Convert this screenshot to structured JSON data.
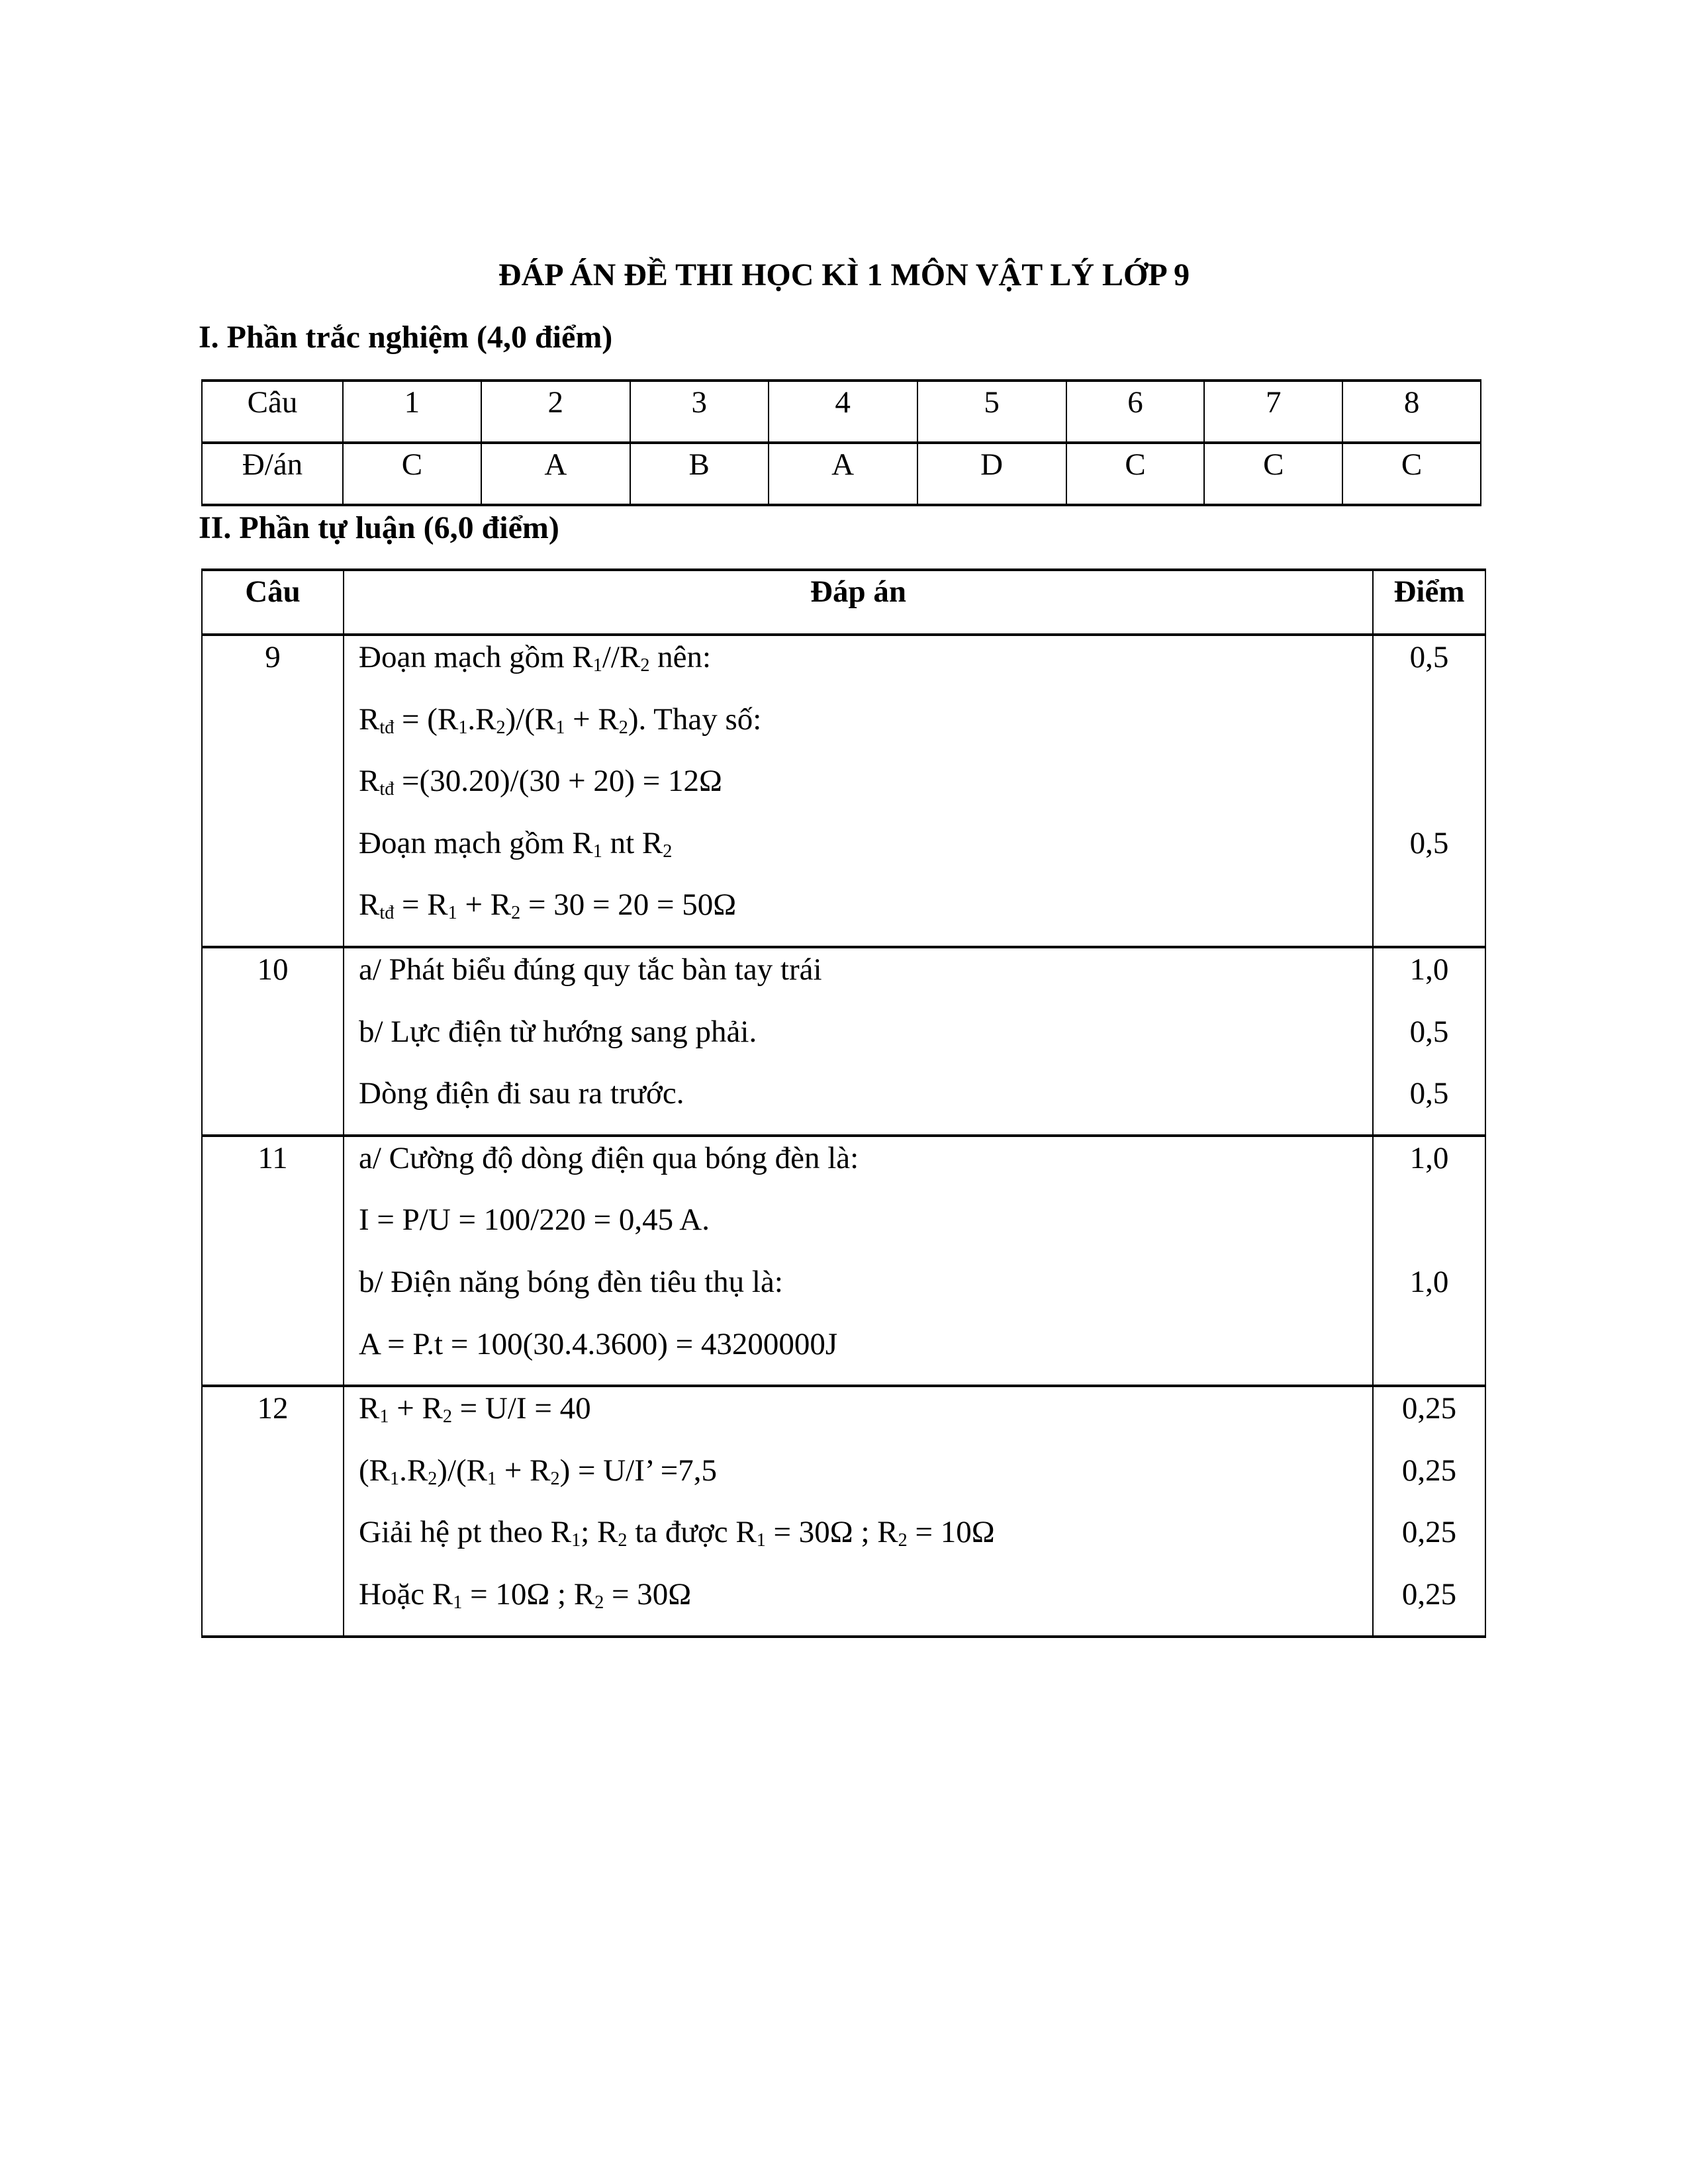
{
  "title": "ĐÁP ÁN ĐỀ THI HỌC KÌ 1 MÔN VẬT LÝ LỚP 9",
  "section1": {
    "heading": "I. Phần trắc nghiệm (4,0 điểm)",
    "row_labels": [
      "Câu",
      "Đ/án"
    ],
    "questions": [
      "1",
      "2",
      "3",
      "4",
      "5",
      "6",
      "7",
      "8"
    ],
    "answers": [
      "C",
      "A",
      "B",
      "A",
      "D",
      "C",
      "C",
      "C"
    ]
  },
  "section2": {
    "heading": "II. Phần tự luận (6,0 điểm)",
    "headers": [
      "Câu",
      "Đáp án",
      "Điểm"
    ],
    "rows": [
      {
        "q": "9",
        "lines": [
          [
            {
              "t": "Đoạn mạch gồm R"
            },
            {
              "s": "1"
            },
            {
              "t": "//R"
            },
            {
              "s": "2"
            },
            {
              "t": " nên:"
            }
          ],
          [
            {
              "t": "R"
            },
            {
              "s": "tđ"
            },
            {
              "t": " = (R"
            },
            {
              "s": "1"
            },
            {
              "t": ".R"
            },
            {
              "s": "2"
            },
            {
              "t": ")/(R"
            },
            {
              "s": "1"
            },
            {
              "t": " + R"
            },
            {
              "s": "2"
            },
            {
              "t": "). Thay số:"
            }
          ],
          [
            {
              "t": "R"
            },
            {
              "s": "tđ"
            },
            {
              "t": " =(30.20)/(30 + 20) = 12Ω"
            }
          ],
          [
            {
              "t": "Đoạn mạch gồm R"
            },
            {
              "s": "1"
            },
            {
              "t": " nt R"
            },
            {
              "s": "2"
            }
          ],
          [
            {
              "t": "R"
            },
            {
              "s": "tđ"
            },
            {
              "t": " = R"
            },
            {
              "s": "1"
            },
            {
              "t": " + R"
            },
            {
              "s": "2"
            },
            {
              "t": " = 30 = 20 = 50Ω"
            }
          ]
        ],
        "points": [
          "0,5",
          "",
          "",
          "0,5",
          ""
        ]
      },
      {
        "q": "10",
        "lines": [
          [
            {
              "t": "a/ Phát biểu đúng quy tắc bàn tay trái"
            }
          ],
          [
            {
              "t": "b/ Lực điện từ hướng sang phải."
            }
          ],
          [
            {
              "t": "Dòng điện đi sau ra trước."
            }
          ]
        ],
        "points": [
          "1,0",
          "0,5",
          "0,5"
        ]
      },
      {
        "q": "11",
        "lines": [
          [
            {
              "t": "a/ Cường độ dòng điện qua bóng đèn là:"
            }
          ],
          [
            {
              "t": "I = P/U = 100/220 = 0,45 A."
            }
          ],
          [
            {
              "t": "b/ Điện năng bóng đèn tiêu thụ là:"
            }
          ],
          [
            {
              "t": "A = P.t = 100(30.4.3600) = 43200000J"
            }
          ]
        ],
        "points": [
          "1,0",
          "",
          "1,0",
          ""
        ]
      },
      {
        "q": "12",
        "lines": [
          [
            {
              "t": "R"
            },
            {
              "s": "1"
            },
            {
              "t": " + R"
            },
            {
              "s": "2"
            },
            {
              "t": " = U/I = 40"
            }
          ],
          [
            {
              "t": "(R"
            },
            {
              "s": "1"
            },
            {
              "t": ".R"
            },
            {
              "s": "2"
            },
            {
              "t": ")/(R"
            },
            {
              "s": "1"
            },
            {
              "t": " + R"
            },
            {
              "s": "2"
            },
            {
              "t": ") = U/I’ =7,5"
            }
          ],
          [
            {
              "t": "Giải hệ pt theo R"
            },
            {
              "s": "1"
            },
            {
              "t": "; R"
            },
            {
              "s": "2"
            },
            {
              "t": " ta được R"
            },
            {
              "s": "1"
            },
            {
              "t": " = 30Ω ; R"
            },
            {
              "s": "2"
            },
            {
              "t": " = 10Ω"
            }
          ],
          [
            {
              "t": "Hoặc R"
            },
            {
              "s": "1"
            },
            {
              "t": " = 10Ω ; R"
            },
            {
              "s": "2"
            },
            {
              "t": " = 30Ω"
            }
          ]
        ],
        "points": [
          "0,25",
          "0,25",
          "0,25",
          "0,25"
        ]
      }
    ]
  }
}
